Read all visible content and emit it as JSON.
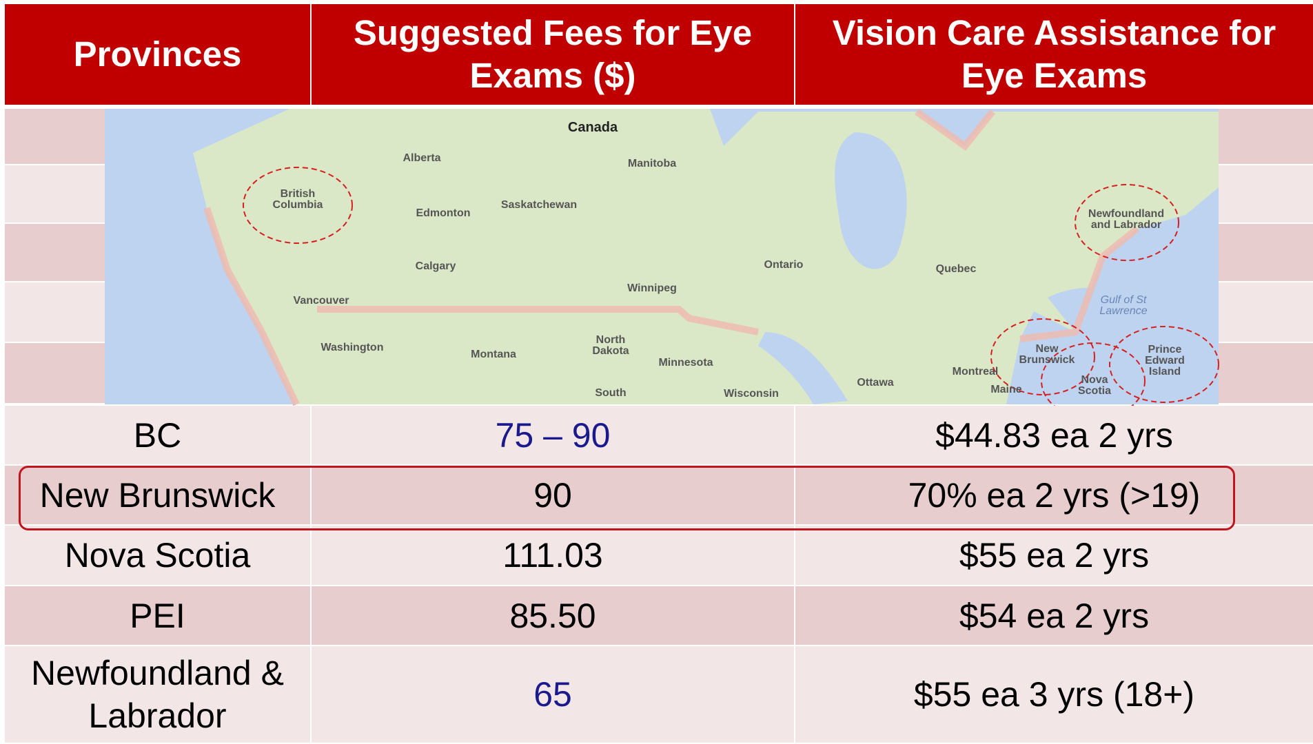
{
  "table": {
    "header": [
      "Provinces",
      "Suggested Fees for Eye Exams ($)",
      "Vision Care Assistance for Eye Exams"
    ],
    "rows": [
      [
        "BC",
        "75 – 90",
        "$44.83 ea 2 yrs"
      ],
      [
        "New Brunswick",
        "90",
        "70% ea 2 yrs (>19)"
      ],
      [
        "Nova Scotia",
        "111.03",
        "$55 ea 2 yrs"
      ],
      [
        "PEI",
        "85.50",
        "$54 ea 2 yrs"
      ],
      [
        "Newfoundland & Labrador",
        "65",
        "$55 ea 3 yrs (18+)"
      ]
    ]
  },
  "map": {
    "labels": [
      "Canada",
      "Alberta",
      "Manitoba",
      "British Columbia",
      "Edmonton",
      "Saskatchewan",
      "Newfoundland and Labrador",
      "Calgary",
      "Ontario",
      "Quebec",
      "Winnipeg",
      "Vancouver",
      "Gulf of St Lawrence",
      "Washington",
      "North Dakota",
      "Montana",
      "Minnesota",
      "New Brunswick",
      "Prince Edward Island",
      "Montreal",
      "Nova Scotia",
      "Ottawa",
      "Maine",
      "South",
      "Wisconsin"
    ]
  }
}
